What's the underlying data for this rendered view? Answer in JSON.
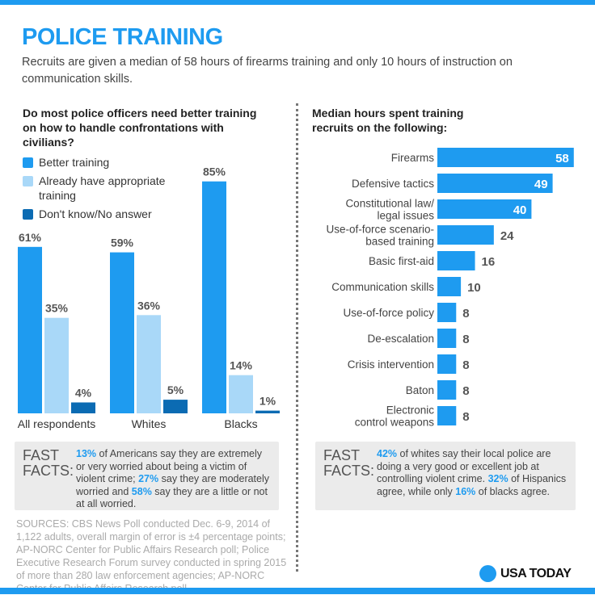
{
  "header": {
    "title": "POLICE TRAINING",
    "subtitle": "Recruits are given a median of 58 hours of firearms training and only 10 hours of instruction on communication skills."
  },
  "colors": {
    "accent": "#1e9bf0",
    "better": "#1e9bf0",
    "already": "#a9d8f8",
    "dontknow": "#0b6bb3",
    "facts_bg": "#ebebeb"
  },
  "chart_data": [
    {
      "type": "bar",
      "title": "Do most police officers need better training on how to handle confrontations with civilians?",
      "categories": [
        "All respondents",
        "Whites",
        "Blacks"
      ],
      "series": [
        {
          "name": "Better training",
          "values": [
            61,
            59,
            85
          ]
        },
        {
          "name": "Already have appropriate training",
          "values": [
            35,
            36,
            14
          ]
        },
        {
          "name": "Don't know/No answer",
          "values": [
            4,
            5,
            1
          ]
        }
      ],
      "unit": "%",
      "legend": "top-left",
      "grid": false
    },
    {
      "type": "bar",
      "orientation": "horizontal",
      "title": "Median hours spent training recruits on the following:",
      "categories": [
        "Firearms",
        "Defensive tactics",
        "Constitutional law/\nlegal issues",
        "Use-of-force scenario-\nbased training",
        "Basic first-aid",
        "Communication skills",
        "Use-of-force policy",
        "De-escalation",
        "Crisis intervention",
        "Baton",
        "Electronic\ncontrol weapons"
      ],
      "values": [
        58,
        49,
        40,
        24,
        16,
        10,
        8,
        8,
        8,
        8,
        8
      ],
      "grid": false
    }
  ],
  "fast_facts_left": {
    "label": "FAST FACTS:",
    "segments": [
      {
        "t": "13%",
        "hl": true
      },
      {
        "t": " of Americans say they are extremely or very worried about being a victim of violent crime; ",
        "hl": false
      },
      {
        "t": "27%",
        "hl": true
      },
      {
        "t": " say they are moderately worried and ",
        "hl": false
      },
      {
        "t": "58%",
        "hl": true
      },
      {
        "t": " say they are a little or not at all worried.",
        "hl": false
      }
    ]
  },
  "fast_facts_right": {
    "label": "FAST FACTS:",
    "segments": [
      {
        "t": "42%",
        "hl": true
      },
      {
        "t": " of whites say their local police are doing a very good or excellent job at controlling violent crime. ",
        "hl": false
      },
      {
        "t": "32%",
        "hl": true
      },
      {
        "t": " of Hispanics agree, while only ",
        "hl": false
      },
      {
        "t": "16%",
        "hl": true
      },
      {
        "t": " of blacks agree.",
        "hl": false
      }
    ]
  },
  "sources": "SOURCES: CBS News Poll conducted Dec. 6-9, 2014 of 1,122 adults, overall margin of error is ±4 percentage points; AP-NORC Center for Public Affairs Research poll; Police Executive Research Forum survey conducted in spring 2015 of more than 280 law enforcement agencies; AP-NORC Center for Public Affairs Research poll",
  "logo": {
    "name": "USA TODAY"
  }
}
